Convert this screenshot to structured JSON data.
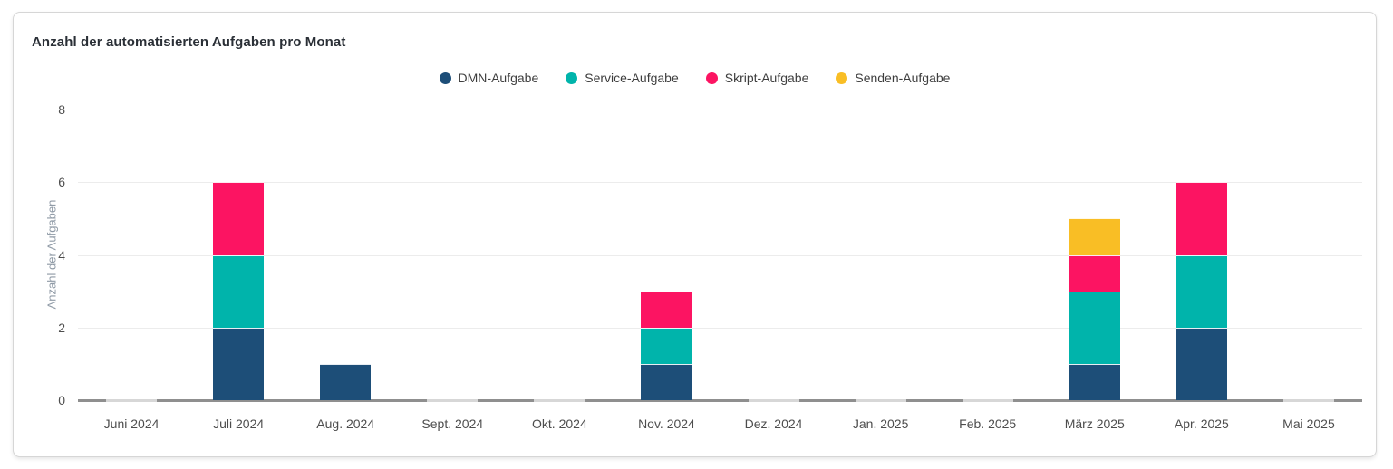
{
  "card": {
    "title": "Anzahl der automatisierten Aufgaben pro Monat"
  },
  "chart_data": {
    "type": "bar",
    "stacked": true,
    "title": "Anzahl der automatisierten Aufgaben pro Monat",
    "xlabel": "",
    "ylabel": "Anzahl der Aufgaben",
    "categories": [
      "Juni 2024",
      "Juli 2024",
      "Aug. 2024",
      "Sept. 2024",
      "Okt. 2024",
      "Nov. 2024",
      "Dez. 2024",
      "Jan. 2025",
      "Feb. 2025",
      "März 2025",
      "Apr. 2025",
      "Mai 2025"
    ],
    "series": [
      {
        "name": "DMN-Aufgabe",
        "color": "#1d4e78",
        "values": [
          0,
          2,
          1,
          0,
          0,
          1,
          0,
          0,
          0,
          1,
          2,
          0
        ]
      },
      {
        "name": "Service-Aufgabe",
        "color": "#00b4ab",
        "values": [
          0,
          2,
          0,
          0,
          0,
          1,
          0,
          0,
          0,
          2,
          2,
          0
        ]
      },
      {
        "name": "Skript-Aufgabe",
        "color": "#fc1462",
        "values": [
          0,
          2,
          0,
          0,
          0,
          1,
          0,
          0,
          0,
          1,
          2,
          0
        ]
      },
      {
        "name": "Senden-Aufgabe",
        "color": "#f9be25",
        "values": [
          0,
          0,
          0,
          0,
          0,
          0,
          0,
          0,
          0,
          1,
          0,
          0
        ]
      }
    ],
    "yticks": [
      0,
      2,
      4,
      6,
      8
    ],
    "ylim": [
      0,
      8
    ],
    "grid": true,
    "legend_position": "top-center",
    "colors": {
      "grid_color": "#ececec",
      "axis_line_color": "#8f8f8f",
      "zero_bar_color": "#d7d7d7",
      "tick_label_color": "#4d4d4d",
      "axis_title_color": "#8f9aa6",
      "title_color": "#2a2f36",
      "card_border_color": "#d6d6d6"
    }
  }
}
